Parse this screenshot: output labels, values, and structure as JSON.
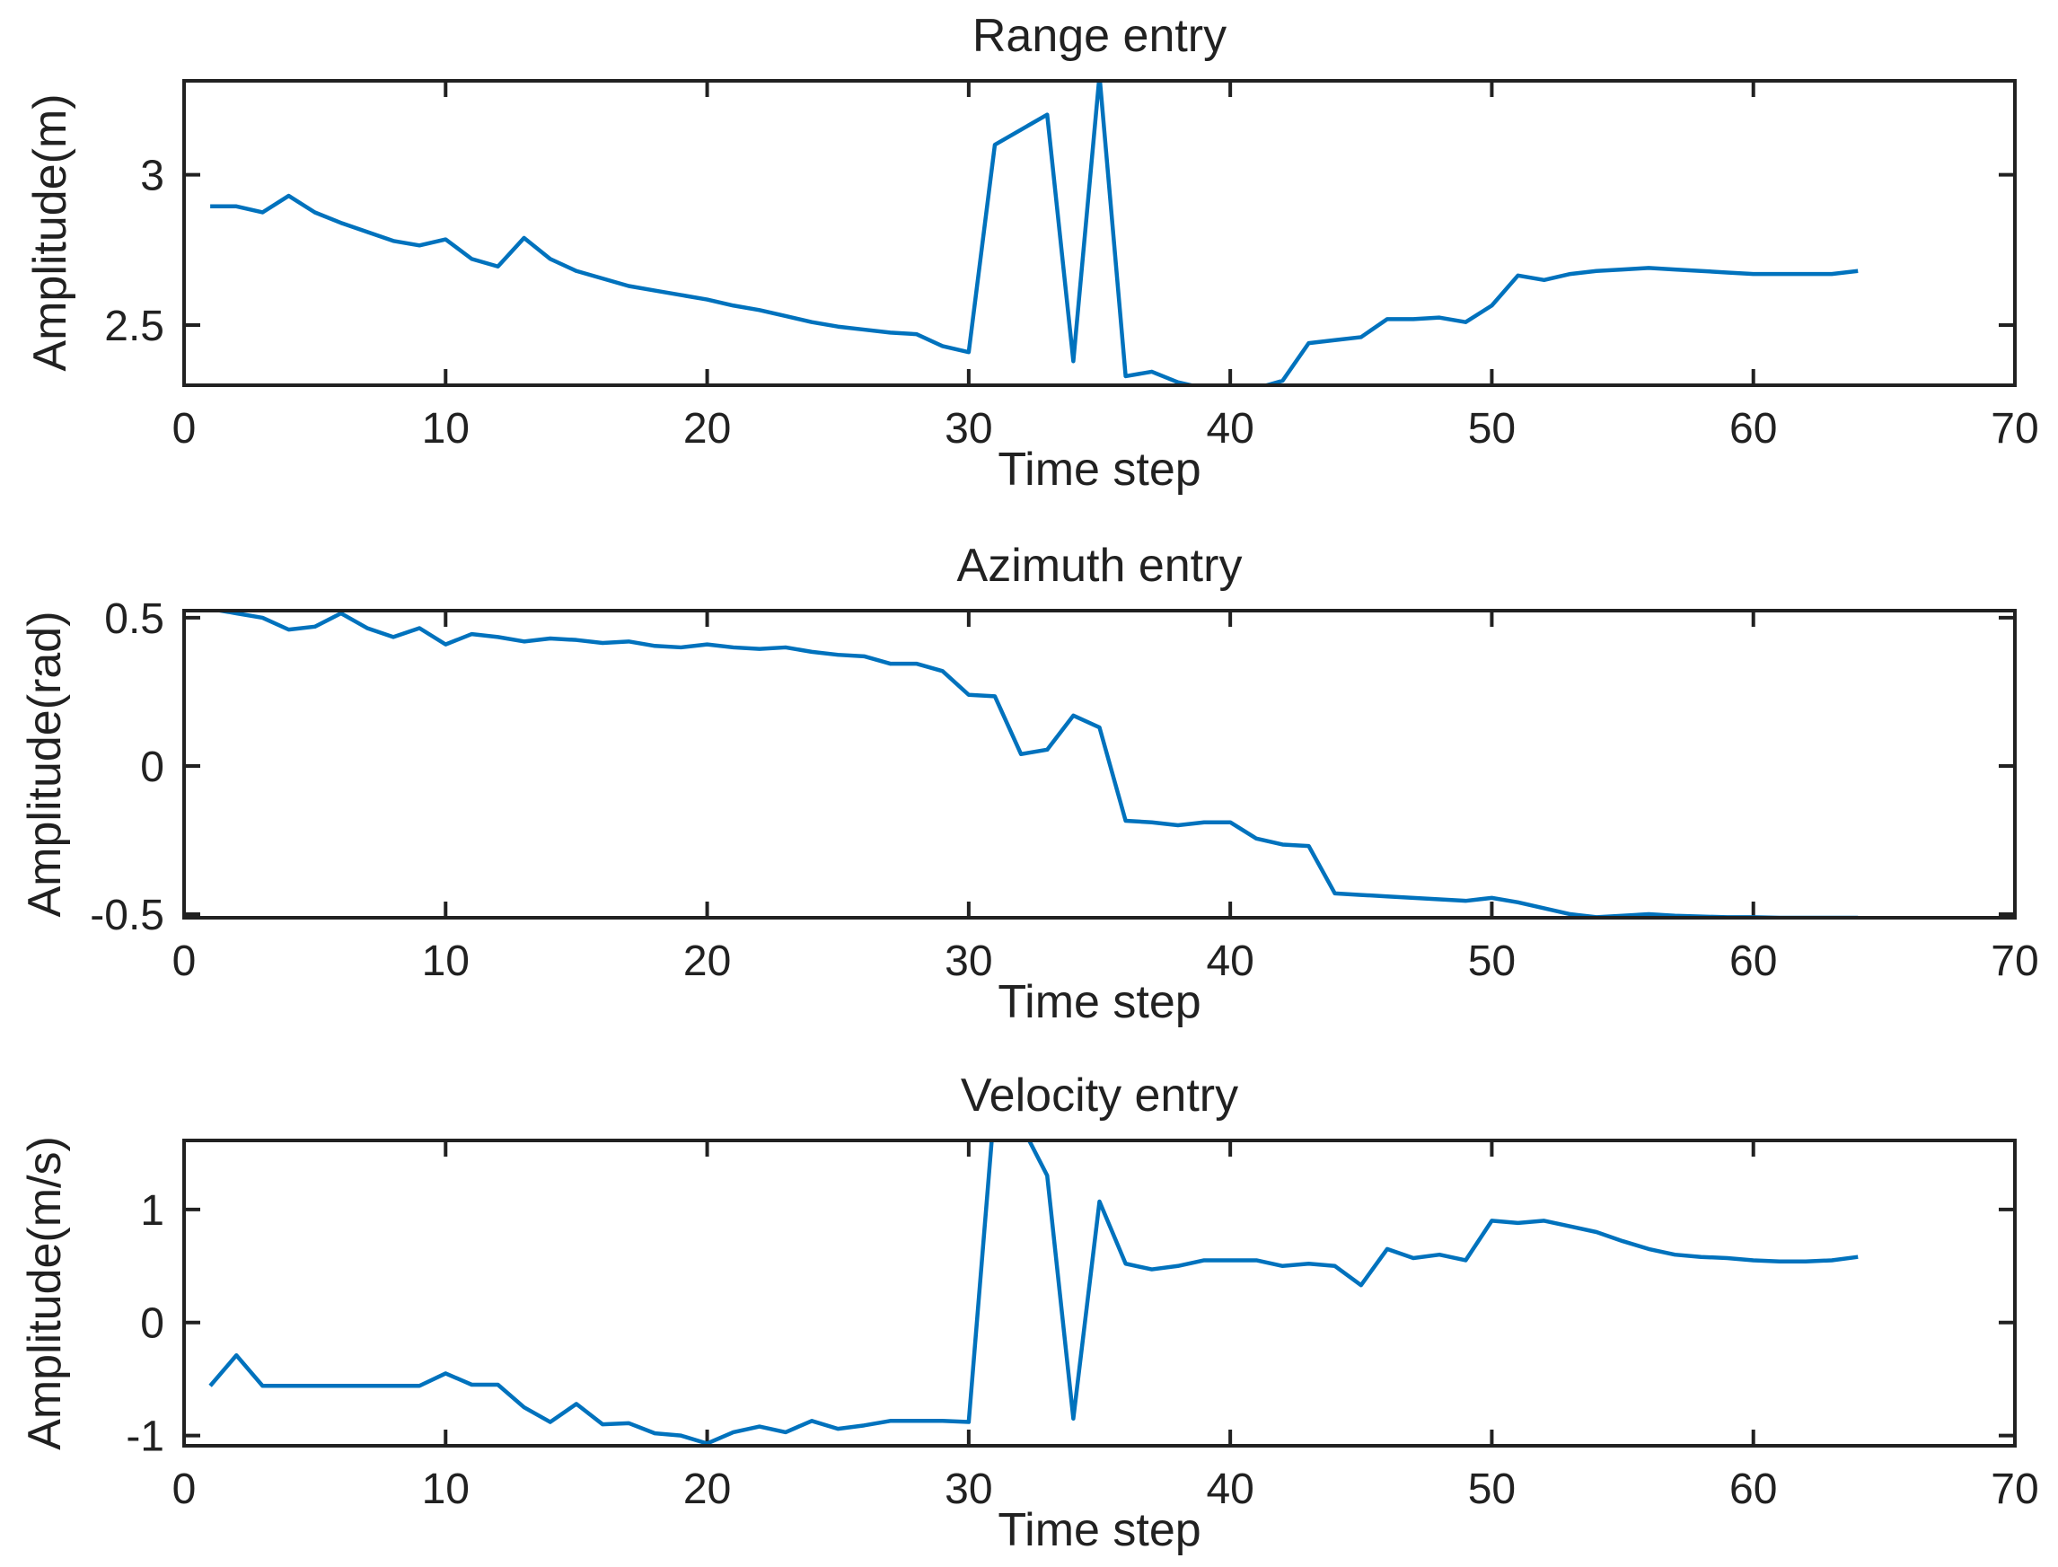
{
  "colors": {
    "line": "#0072BD",
    "axes": "#212121",
    "text": "#212121",
    "background": "#ffffff"
  },
  "chart_data": [
    {
      "type": "line",
      "title": "Range entry",
      "xlabel": "Time step",
      "ylabel": "Amplitude(m)",
      "grid": false,
      "legend": "none",
      "x_start": 1,
      "x_step": 1,
      "xlim": [
        0,
        70
      ],
      "ylim": [
        2.3,
        3.3125
      ],
      "xticks": [
        0,
        10,
        20,
        30,
        40,
        50,
        60,
        70
      ],
      "xtick_labels": [
        "0",
        "10",
        "20",
        "30",
        "40",
        "50",
        "60",
        "70"
      ],
      "ytick_values": [
        2.5,
        3
      ],
      "ytick_labels": [
        "2.5",
        "3"
      ],
      "values": [
        2.895,
        2.895,
        2.875,
        2.93,
        2.875,
        2.84,
        2.81,
        2.78,
        2.765,
        2.785,
        2.72,
        2.695,
        2.79,
        2.72,
        2.68,
        2.655,
        2.63,
        2.615,
        2.6,
        2.585,
        2.565,
        2.55,
        2.53,
        2.51,
        2.495,
        2.485,
        2.475,
        2.47,
        2.43,
        2.41,
        3.1,
        3.15,
        3.2,
        2.38,
        3.33,
        2.33,
        2.345,
        2.31,
        2.29,
        2.29,
        2.29,
        2.315,
        2.44,
        2.45,
        2.46,
        2.52,
        2.52,
        2.525,
        2.51,
        2.565,
        2.665,
        2.65,
        2.67,
        2.68,
        2.685,
        2.69,
        2.685,
        2.68,
        2.675,
        2.67,
        2.67,
        2.67,
        2.67,
        2.68
      ]
    },
    {
      "type": "line",
      "title": "Azimuth entry",
      "xlabel": "Time step",
      "ylabel": "Amplitude(rad)",
      "grid": false,
      "legend": "none",
      "x_start": 1,
      "x_step": 1,
      "xlim": [
        0,
        70
      ],
      "ylim": [
        -0.512,
        0.524
      ],
      "xticks": [
        0,
        10,
        20,
        30,
        40,
        50,
        60,
        70
      ],
      "xtick_labels": [
        "0",
        "10",
        "20",
        "30",
        "40",
        "50",
        "60",
        "70"
      ],
      "ytick_values": [
        -0.5,
        0,
        0.5
      ],
      "ytick_labels": [
        "-0.5",
        "0",
        "0.5"
      ],
      "values": [
        0.53,
        0.515,
        0.5,
        0.46,
        0.47,
        0.515,
        0.465,
        0.435,
        0.465,
        0.41,
        0.445,
        0.435,
        0.42,
        0.43,
        0.425,
        0.415,
        0.42,
        0.405,
        0.4,
        0.41,
        0.4,
        0.395,
        0.4,
        0.385,
        0.375,
        0.37,
        0.345,
        0.345,
        0.32,
        0.24,
        0.235,
        0.04,
        0.055,
        0.17,
        0.13,
        -0.185,
        -0.19,
        -0.2,
        -0.19,
        -0.19,
        -0.245,
        -0.265,
        -0.27,
        -0.43,
        -0.435,
        -0.44,
        -0.445,
        -0.45,
        -0.455,
        -0.445,
        -0.46,
        -0.48,
        -0.5,
        -0.51,
        -0.505,
        -0.5,
        -0.505,
        -0.508,
        -0.51,
        -0.51,
        -0.512,
        -0.512,
        -0.512,
        -0.512
      ]
    },
    {
      "type": "line",
      "title": "Velocity entry",
      "xlabel": "Time step",
      "ylabel": "Amplitude(m/s)",
      "grid": false,
      "legend": "none",
      "x_start": 1,
      "x_step": 1,
      "xlim": [
        0,
        70
      ],
      "ylim": [
        -1.09,
        1.61
      ],
      "xticks": [
        0,
        10,
        20,
        30,
        40,
        50,
        60,
        70
      ],
      "xtick_labels": [
        "0",
        "10",
        "20",
        "30",
        "40",
        "50",
        "60",
        "70"
      ],
      "ytick_values": [
        -1,
        0,
        1
      ],
      "ytick_labels": [
        "-1",
        "0",
        "1"
      ],
      "values": [
        -0.56,
        -0.29,
        -0.56,
        -0.56,
        -0.56,
        -0.56,
        -0.56,
        -0.56,
        -0.56,
        -0.45,
        -0.55,
        -0.55,
        -0.75,
        -0.88,
        -0.72,
        -0.9,
        -0.89,
        -0.98,
        -1.0,
        -1.07,
        -0.97,
        -0.92,
        -0.97,
        -0.87,
        -0.94,
        -0.91,
        -0.87,
        -0.87,
        -0.87,
        -0.88,
        1.95,
        1.75,
        1.3,
        -0.85,
        1.07,
        0.52,
        0.47,
        0.5,
        0.55,
        0.55,
        0.55,
        0.5,
        0.52,
        0.5,
        0.33,
        0.65,
        0.57,
        0.6,
        0.55,
        0.9,
        0.88,
        0.9,
        0.85,
        0.8,
        0.72,
        0.65,
        0.6,
        0.58,
        0.57,
        0.55,
        0.54,
        0.54,
        0.55,
        0.58
      ]
    }
  ]
}
